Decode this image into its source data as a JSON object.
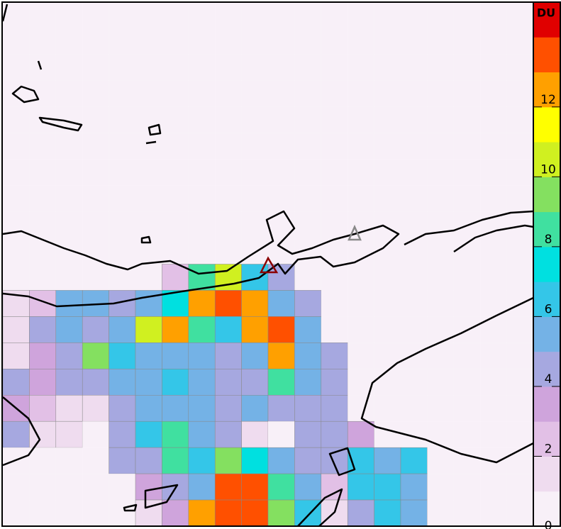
{
  "map": {
    "heatmap": {
      "values": [
        [
          0,
          0,
          0,
          0,
          0,
          0,
          0,
          0,
          0,
          0,
          0,
          0,
          0,
          0,
          0,
          0,
          0,
          0,
          0,
          0
        ],
        [
          0,
          0,
          0,
          0,
          0,
          0,
          0,
          0,
          0,
          0,
          0,
          0,
          0,
          0,
          0,
          0,
          0,
          0,
          0,
          0
        ],
        [
          0,
          0,
          0,
          0,
          0,
          0,
          0,
          0,
          0,
          0,
          0,
          0,
          0,
          0,
          0,
          0,
          0,
          0,
          0,
          0
        ],
        [
          0,
          0,
          0,
          0,
          0,
          0,
          0,
          0,
          0,
          0,
          0,
          0,
          0,
          0,
          0,
          0,
          0,
          0,
          0,
          0
        ],
        [
          0,
          0,
          0,
          0,
          0,
          0,
          0,
          0,
          0,
          0,
          0,
          0,
          0,
          0,
          0,
          0,
          0,
          0,
          0,
          0
        ],
        [
          0,
          0,
          0,
          0,
          0,
          0,
          0,
          0,
          0,
          0,
          0,
          0,
          0,
          0,
          0,
          0,
          0,
          0,
          0,
          0
        ],
        [
          0,
          0,
          0,
          0,
          0,
          0,
          0,
          0,
          0,
          0,
          0,
          0,
          0,
          0,
          0,
          0,
          0,
          0,
          0,
          0
        ],
        [
          0,
          0,
          0,
          0,
          0,
          0,
          0,
          0,
          0,
          0,
          0,
          0,
          0,
          0,
          0,
          0,
          0,
          0,
          0,
          0
        ],
        [
          0,
          0,
          0,
          0,
          0,
          0,
          0,
          0,
          0,
          0,
          0,
          0,
          0,
          0,
          0,
          0,
          0,
          0,
          0,
          0
        ],
        [
          0,
          0,
          0,
          0,
          0,
          0,
          0,
          0,
          0,
          0,
          0,
          0.3,
          0,
          0.3,
          0,
          0.3,
          0,
          0.3,
          0,
          0.5
        ],
        [
          0,
          0,
          0,
          0,
          0,
          0,
          2,
          8,
          10,
          6,
          4,
          0.5,
          0.3,
          0,
          0.3,
          0,
          0.3,
          0,
          0.5,
          0
        ],
        [
          1,
          2,
          5,
          5,
          4,
          5,
          7,
          12,
          13,
          12,
          5,
          4,
          0.3,
          0,
          0.3,
          0,
          0,
          0.3,
          0,
          0
        ],
        [
          1,
          4,
          5,
          4,
          5,
          10,
          12,
          8,
          6,
          12,
          13,
          5,
          0.3,
          0,
          0,
          0.3,
          0,
          0,
          0.3,
          0
        ],
        [
          1,
          3,
          4,
          9,
          6,
          5,
          5,
          5,
          4,
          5,
          12,
          5,
          4,
          0,
          0.3,
          0,
          0,
          0.5,
          0,
          0
        ],
        [
          4,
          3,
          4,
          4,
          5,
          5,
          6,
          5,
          4,
          4,
          8,
          5,
          4,
          0,
          0,
          0,
          0,
          0,
          0.3,
          0
        ],
        [
          3,
          2,
          1,
          1,
          4,
          5,
          5,
          5,
          4,
          5,
          4,
          4,
          4,
          0.5,
          0,
          0,
          0,
          0,
          0.3,
          0
        ],
        [
          4,
          1,
          1,
          0.5,
          4,
          6,
          8,
          5,
          4,
          1,
          0.5,
          4,
          4,
          3,
          0,
          0,
          0,
          0,
          0.3,
          0
        ],
        [
          0.5,
          0.5,
          0.3,
          0.5,
          4,
          4,
          8,
          6,
          9,
          7,
          5,
          4,
          4,
          6,
          5,
          6,
          0.3,
          0,
          0,
          0
        ],
        [
          0.3,
          0.5,
          0.3,
          0.3,
          0.5,
          3,
          4,
          5,
          13,
          13,
          8,
          5,
          2,
          6,
          6,
          5,
          0.3,
          0.3,
          0,
          0
        ],
        [
          0.3,
          0.3,
          0.5,
          0.3,
          0.5,
          1,
          3,
          12,
          13,
          13,
          9,
          6,
          1,
          4,
          6,
          5,
          0.3,
          0.5,
          0.3,
          0
        ]
      ]
    },
    "colorbar": {
      "label": "DU",
      "lim": [
        0,
        15
      ],
      "ticks": [
        0,
        2,
        4,
        6,
        8,
        10,
        12
      ],
      "colors": [
        "#f8f0f8",
        "#efdcef",
        "#e2c0e6",
        "#cfa4dc",
        "#a6a8e0",
        "#74b2e6",
        "#34c6e8",
        "#00e0e0",
        "#40e0a0",
        "#84e060",
        "#d0f020",
        "#ffff00",
        "#ffa000",
        "#ff5000",
        "#e00000"
      ]
    }
  }
}
